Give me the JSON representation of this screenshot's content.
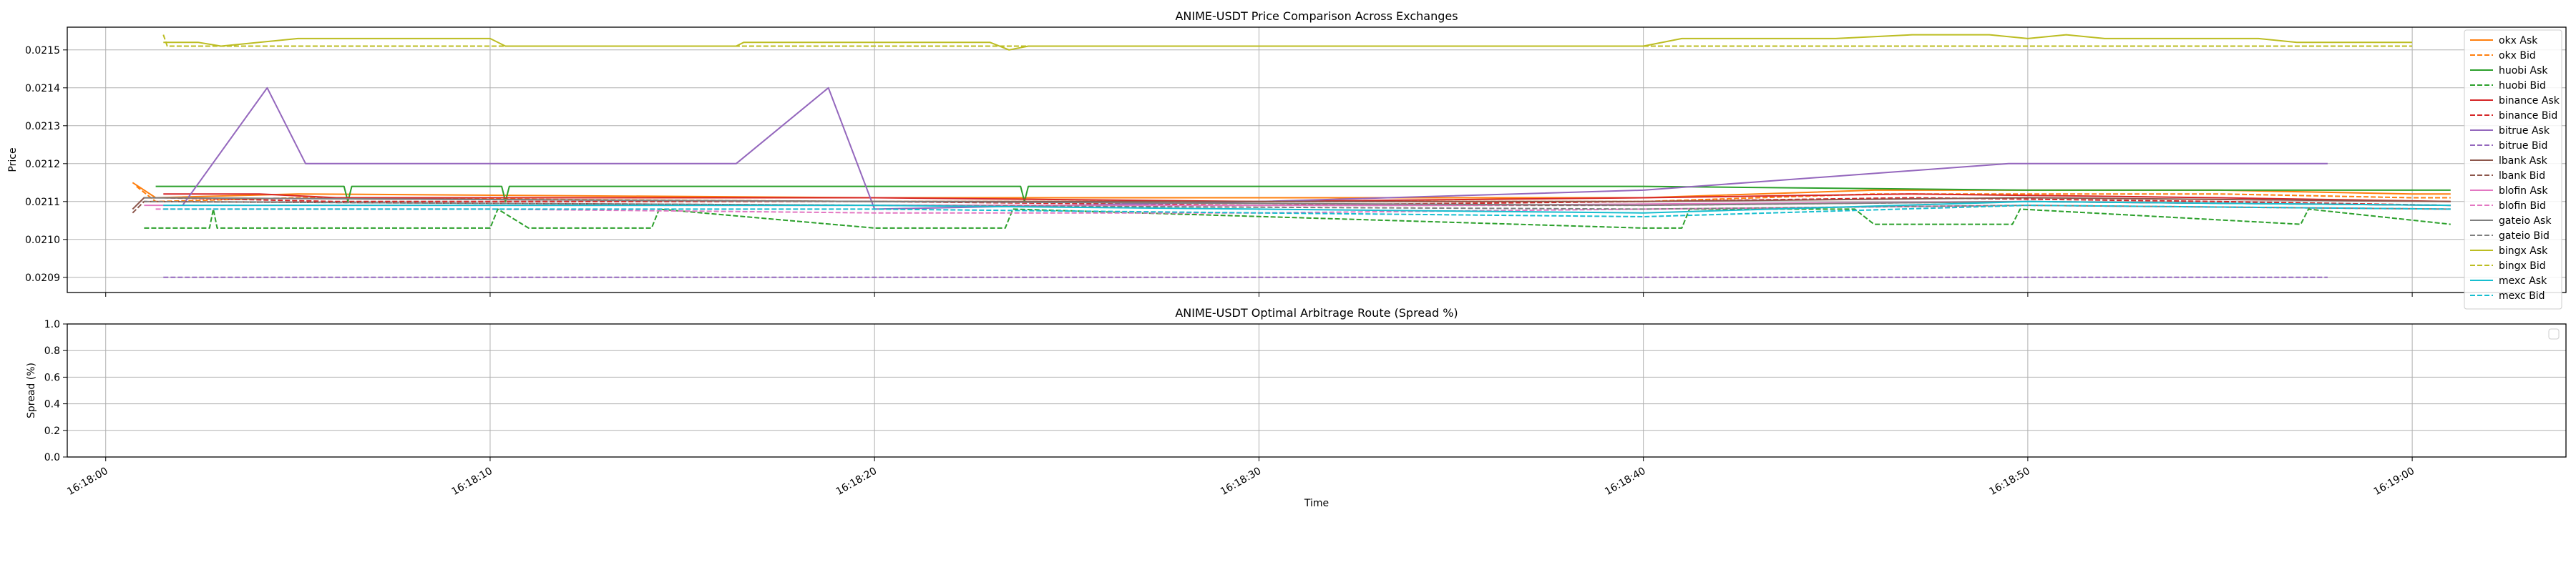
{
  "chart_data": [
    {
      "type": "line",
      "title": "ANIME-USDT Price Comparison Across Exchanges",
      "xlabel": "",
      "ylabel": "Price",
      "xlim": [
        "16:17:59",
        "16:19:04"
      ],
      "ylim": [
        0.02086,
        0.02156
      ],
      "y_ticks": [
        "0.0209",
        "0.0210",
        "0.0211",
        "0.0212",
        "0.0213",
        "0.0214",
        "0.0215"
      ],
      "grid": true,
      "legend_position": "right, outside plot",
      "series": [
        {
          "name": "okx Ask",
          "color": "#ff7f0e",
          "dash": "solid",
          "x": [
            "16:18:00.7",
            "16:18:01.3",
            "16:18:05",
            "16:18:20",
            "16:18:40",
            "16:18:46",
            "16:18:55",
            "16:19:00",
            "16:19:01"
          ],
          "y": [
            0.02115,
            0.02111,
            0.02112,
            0.02111,
            0.02111,
            0.02113,
            0.02113,
            0.02112,
            0.02112
          ]
        },
        {
          "name": "okx Bid",
          "color": "#ff7f0e",
          "dash": "dashed",
          "x": [
            "16:18:00.8",
            "16:18:01.3",
            "16:18:05",
            "16:18:20",
            "16:18:40",
            "16:18:46",
            "16:18:55",
            "16:19:00",
            "16:19:01"
          ],
          "y": [
            0.02114,
            0.0211,
            0.02111,
            0.0211,
            0.0211,
            0.02112,
            0.02112,
            0.02111,
            0.02111
          ]
        },
        {
          "name": "huobi Ask",
          "color": "#2ca02c",
          "dash": "solid",
          "x": [
            "16:18:01.3",
            "16:18:06.2",
            "16:18:06.3",
            "16:18:06.4",
            "16:18:10.3",
            "16:18:10.4",
            "16:18:10.5",
            "16:18:20",
            "16:18:23.8",
            "16:18:23.9",
            "16:18:24",
            "16:18:40",
            "16:18:50",
            "16:19:01"
          ],
          "y": [
            0.02114,
            0.02114,
            0.0211,
            0.02114,
            0.02114,
            0.0211,
            0.02114,
            0.02114,
            0.02114,
            0.0211,
            0.02114,
            0.02114,
            0.02113,
            0.02113
          ]
        },
        {
          "name": "huobi Bid",
          "color": "#2ca02c",
          "dash": "dashed",
          "x": [
            "16:18:01.0",
            "16:18:01.3",
            "16:18:02.7",
            "16:18:02.8",
            "16:18:02.9",
            "16:18:04.4",
            "16:18:04.5",
            "16:18:10.0",
            "16:18:10.2",
            "16:18:11.0",
            "16:18:11.2",
            "16:18:14.2",
            "16:18:14.4",
            "16:18:20",
            "16:18:23.4",
            "16:18:23.6",
            "16:18:40",
            "16:18:41.0",
            "16:18:41.2",
            "16:18:45.5",
            "16:18:46",
            "16:18:49.6",
            "16:18:49.8",
            "16:18:57.1",
            "16:18:57.3",
            "16:19:01"
          ],
          "y": [
            0.02103,
            0.02103,
            0.02103,
            0.02108,
            0.02103,
            0.02103,
            0.02103,
            0.02103,
            0.02108,
            0.02103,
            0.02103,
            0.02103,
            0.02108,
            0.02103,
            0.02103,
            0.02108,
            0.02103,
            0.02103,
            0.02108,
            0.02108,
            0.02104,
            0.02104,
            0.02108,
            0.02104,
            0.02108,
            0.02104
          ]
        },
        {
          "name": "binance Ask",
          "color": "#d62728",
          "dash": "solid",
          "x": [
            "16:18:01.5",
            "16:18:04",
            "16:18:06",
            "16:18:20",
            "16:18:30",
            "16:18:40",
            "16:18:47",
            "16:18:55",
            "16:19:01"
          ],
          "y": [
            0.02112,
            0.02112,
            0.02111,
            0.02111,
            0.0211,
            0.02111,
            0.02112,
            0.02111,
            0.0211
          ]
        },
        {
          "name": "binance Bid",
          "color": "#d62728",
          "dash": "dashed",
          "x": [
            "16:18:01.5",
            "16:18:06",
            "16:18:20",
            "16:18:30",
            "16:18:40",
            "16:18:47",
            "16:18:55",
            "16:19:01"
          ],
          "y": [
            0.02111,
            0.0211,
            0.0211,
            0.02109,
            0.0211,
            0.02111,
            0.0211,
            0.02109
          ]
        },
        {
          "name": "bitrue Ask",
          "color": "#9467bd",
          "dash": "solid",
          "x": [
            "16:18:02.0",
            "16:18:04.2",
            "16:18:05.2",
            "16:18:16.4",
            "16:18:18.8",
            "16:18:20.0",
            "16:18:30",
            "16:18:40",
            "16:18:49.5",
            "16:18:57.8"
          ],
          "y": [
            0.02109,
            0.0214,
            0.0212,
            0.0212,
            0.0214,
            0.02108,
            0.0211,
            0.02113,
            0.0212,
            0.0212
          ]
        },
        {
          "name": "bitrue Bid",
          "color": "#9467bd",
          "dash": "dashed",
          "x": [
            "16:18:01.5",
            "16:18:57.8"
          ],
          "y": [
            0.0209,
            0.0209
          ]
        },
        {
          "name": "lbank Ask",
          "color": "#8c564b",
          "dash": "solid",
          "x": [
            "16:18:00.7",
            "16:18:01",
            "16:18:20",
            "16:18:40",
            "16:18:50",
            "16:19:01"
          ],
          "y": [
            0.02108,
            0.02111,
            0.0211,
            0.0211,
            0.02111,
            0.0211
          ]
        },
        {
          "name": "lbank Bid",
          "color": "#8c564b",
          "dash": "dashed",
          "x": [
            "16:18:00.7",
            "16:18:01",
            "16:18:20",
            "16:18:40",
            "16:18:50",
            "16:19:01"
          ],
          "y": [
            0.02107,
            0.0211,
            0.02109,
            0.02109,
            0.0211,
            0.02109
          ]
        },
        {
          "name": "blofin Ask",
          "color": "#e377c2",
          "dash": "solid",
          "x": [
            "16:18:01",
            "16:18:20",
            "16:18:35",
            "16:18:50",
            "16:19:01"
          ],
          "y": [
            0.02109,
            0.02109,
            0.02109,
            0.0211,
            0.02109
          ]
        },
        {
          "name": "blofin Bid",
          "color": "#e377c2",
          "dash": "dashed",
          "x": [
            "16:18:01.3",
            "16:18:10",
            "16:18:20",
            "16:18:30",
            "16:18:40",
            "16:18:50",
            "16:19:01"
          ],
          "y": [
            0.02108,
            0.02108,
            0.02107,
            0.02107,
            0.02108,
            0.02109,
            0.02108
          ]
        },
        {
          "name": "gateio Ask",
          "color": "#7f7f7f",
          "dash": "solid",
          "x": [
            "16:18:01",
            "16:18:20",
            "16:18:40",
            "16:18:50",
            "16:19:01"
          ],
          "y": [
            0.02111,
            0.0211,
            0.02109,
            0.0211,
            0.02109
          ]
        },
        {
          "name": "gateio Bid",
          "color": "#7f7f7f",
          "dash": "dashed",
          "x": [
            "16:18:01",
            "16:18:20",
            "16:18:40",
            "16:18:50",
            "16:19:01"
          ],
          "y": [
            0.0211,
            0.02109,
            0.02108,
            0.02109,
            0.02108
          ]
        },
        {
          "name": "bingx Ask",
          "color": "#bcbd22",
          "dash": "solid",
          "x": [
            "16:18:01.5",
            "16:18:01.6",
            "16:18:02.0",
            "16:18:02.4",
            "16:18:03",
            "16:18:05",
            "16:18:10",
            "16:18:10.4",
            "16:18:16.4",
            "16:18:16.6",
            "16:18:23",
            "16:18:23.5",
            "16:18:24",
            "16:18:40",
            "16:18:41",
            "16:18:45",
            "16:18:47",
            "16:18:49",
            "16:18:50",
            "16:18:51",
            "16:18:52",
            "16:18:56",
            "16:18:57",
            "16:19:00"
          ],
          "y": [
            0.02152,
            0.02152,
            0.02152,
            0.02152,
            0.02151,
            0.02153,
            0.02153,
            0.02151,
            0.02151,
            0.02152,
            0.02152,
            0.0215,
            0.02151,
            0.02151,
            0.02153,
            0.02153,
            0.02154,
            0.02154,
            0.02153,
            0.02154,
            0.02153,
            0.02153,
            0.02152,
            0.02152
          ]
        },
        {
          "name": "bingx Bid",
          "color": "#bcbd22",
          "dash": "dashed",
          "x": [
            "16:18:01.5",
            "16:18:01.6",
            "16:18:05",
            "16:18:20",
            "16:18:40",
            "16:18:50",
            "16:19:00"
          ],
          "y": [
            0.02154,
            0.02151,
            0.02151,
            0.02151,
            0.02151,
            0.02151,
            0.02151
          ]
        },
        {
          "name": "mexc Ask",
          "color": "#17becf",
          "dash": "solid",
          "x": [
            "16:18:01.5",
            "16:18:10",
            "16:18:20",
            "16:18:30",
            "16:18:40",
            "16:18:50",
            "16:19:01"
          ],
          "y": [
            0.02109,
            0.02109,
            0.02109,
            0.02108,
            0.02107,
            0.0211,
            0.02109
          ]
        },
        {
          "name": "mexc Bid",
          "color": "#17becf",
          "dash": "dashed",
          "x": [
            "16:18:01.5",
            "16:18:10",
            "16:18:20",
            "16:18:30",
            "16:18:40",
            "16:18:50",
            "16:19:01"
          ],
          "y": [
            0.02108,
            0.02108,
            0.02108,
            0.02107,
            0.02106,
            0.02109,
            0.02108
          ]
        }
      ]
    },
    {
      "type": "line",
      "title": "ANIME-USDT Optimal Arbitrage Route (Spread %)",
      "xlabel": "Time",
      "ylabel": "Spread (%)",
      "xlim": [
        "16:17:59",
        "16:19:04"
      ],
      "ylim": [
        0.0,
        1.0
      ],
      "y_ticks": [
        "0.0",
        "0.2",
        "0.4",
        "0.6",
        "0.8",
        "1.0"
      ],
      "x_ticks": [
        "16:18:00",
        "16:18:10",
        "16:18:20",
        "16:18:30",
        "16:18:40",
        "16:18:50",
        "16:19:00"
      ],
      "grid": true,
      "legend_position": "upper right",
      "series": []
    }
  ]
}
